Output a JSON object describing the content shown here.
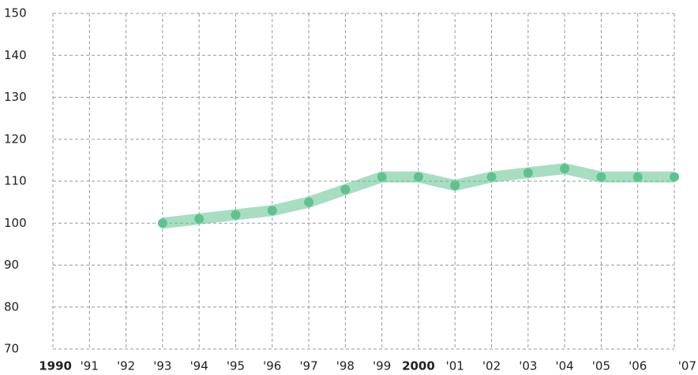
{
  "chart_data": {
    "type": "line",
    "categories": [
      "1990",
      "'91",
      "'92",
      "'93",
      "'94",
      "'95",
      "'96",
      "'97",
      "'98",
      "'99",
      "2000",
      "'01",
      "'02",
      "'03",
      "'04",
      "'05",
      "'06",
      "'07"
    ],
    "series": [
      {
        "color": "#5ec28e",
        "values": [
          null,
          null,
          null,
          100,
          101,
          102,
          103,
          105,
          108,
          111,
          111,
          109,
          111,
          112,
          113,
          111,
          111,
          111
        ]
      }
    ],
    "ylim": [
      70,
      150
    ],
    "yticks": [
      70,
      80,
      90,
      100,
      110,
      120,
      130,
      140,
      150
    ],
    "grid": true
  }
}
